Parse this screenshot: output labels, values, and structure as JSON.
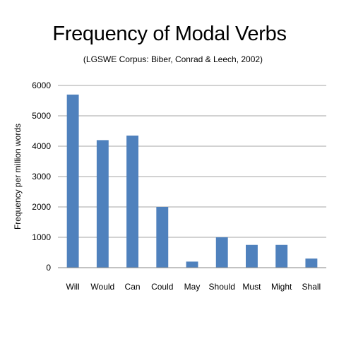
{
  "chart_data": {
    "type": "bar",
    "title": "Frequency of Modal Verbs",
    "subtitle": "(LGSWE Corpus: Biber,  Conrad & Leech, 2002)",
    "xlabel": "",
    "ylabel": "Frequency per million words",
    "categories": [
      "Will",
      "Would",
      "Can",
      "Could",
      "May",
      "Should",
      "Must",
      "Might",
      "Shall"
    ],
    "values": [
      5700,
      4200,
      4350,
      2000,
      200,
      1000,
      750,
      750,
      300
    ],
    "ylim": [
      0,
      6000
    ],
    "yticks": [
      0,
      1000,
      2000,
      3000,
      4000,
      5000,
      6000
    ],
    "grid": true,
    "bar_color": "#4f81bd",
    "grid_color": "#868686",
    "axis_color": "#868686"
  }
}
